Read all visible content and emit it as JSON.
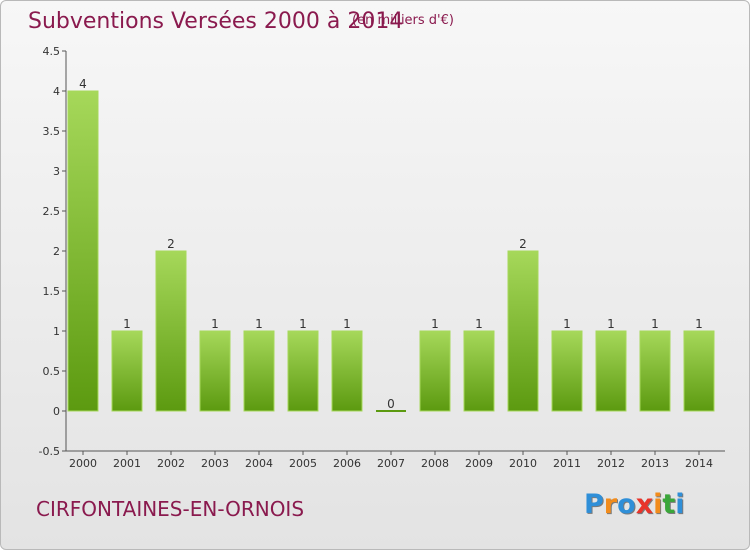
{
  "header": {
    "title": "Subventions Versées 2000 à 2014",
    "subtitle": "(en milliers d'€)"
  },
  "footer": {
    "commune": "CIRFONTAINES-EN-ORNOIS",
    "logo_letters": [
      "P",
      "r",
      "o",
      "x",
      "i",
      "t",
      "i"
    ],
    "logo_colors": [
      "#2f8fd8",
      "#f28c1c",
      "#2f8fd8",
      "#e8342a",
      "#f28c1c",
      "#3aa63a",
      "#2f8fd8"
    ]
  },
  "chart_data": {
    "type": "bar",
    "title": "Subventions Versées 2000 à 2014",
    "subtitle": "(en milliers d'€)",
    "categories": [
      "2000",
      "2001",
      "2002",
      "2003",
      "2004",
      "2005",
      "2006",
      "2007",
      "2008",
      "2009",
      "2010",
      "2011",
      "2012",
      "2013",
      "2014"
    ],
    "values": [
      4,
      1,
      2,
      1,
      1,
      1,
      1,
      0,
      1,
      1,
      2,
      1,
      1,
      1,
      1
    ],
    "data_labels": [
      "4",
      "1",
      "2",
      "1",
      "1",
      "1",
      "1",
      "0",
      "1",
      "1",
      "2",
      "1",
      "1",
      "1",
      "1"
    ],
    "ylim": [
      -0.5,
      4.5
    ],
    "yticks": [
      -0.5,
      0,
      0.5,
      1,
      1.5,
      2,
      2.5,
      3,
      3.5,
      4,
      4.5
    ],
    "ytick_labels": [
      "-0.5",
      "0",
      "0.5",
      "1",
      "1.5",
      "2",
      "2.5",
      "3",
      "3.5",
      "4",
      "4.5"
    ],
    "xlabel": "",
    "ylabel": "",
    "grid": false,
    "legend": "none",
    "bar_color_light": "#a6d85a",
    "bar_color_dark": "#5c9a10"
  }
}
